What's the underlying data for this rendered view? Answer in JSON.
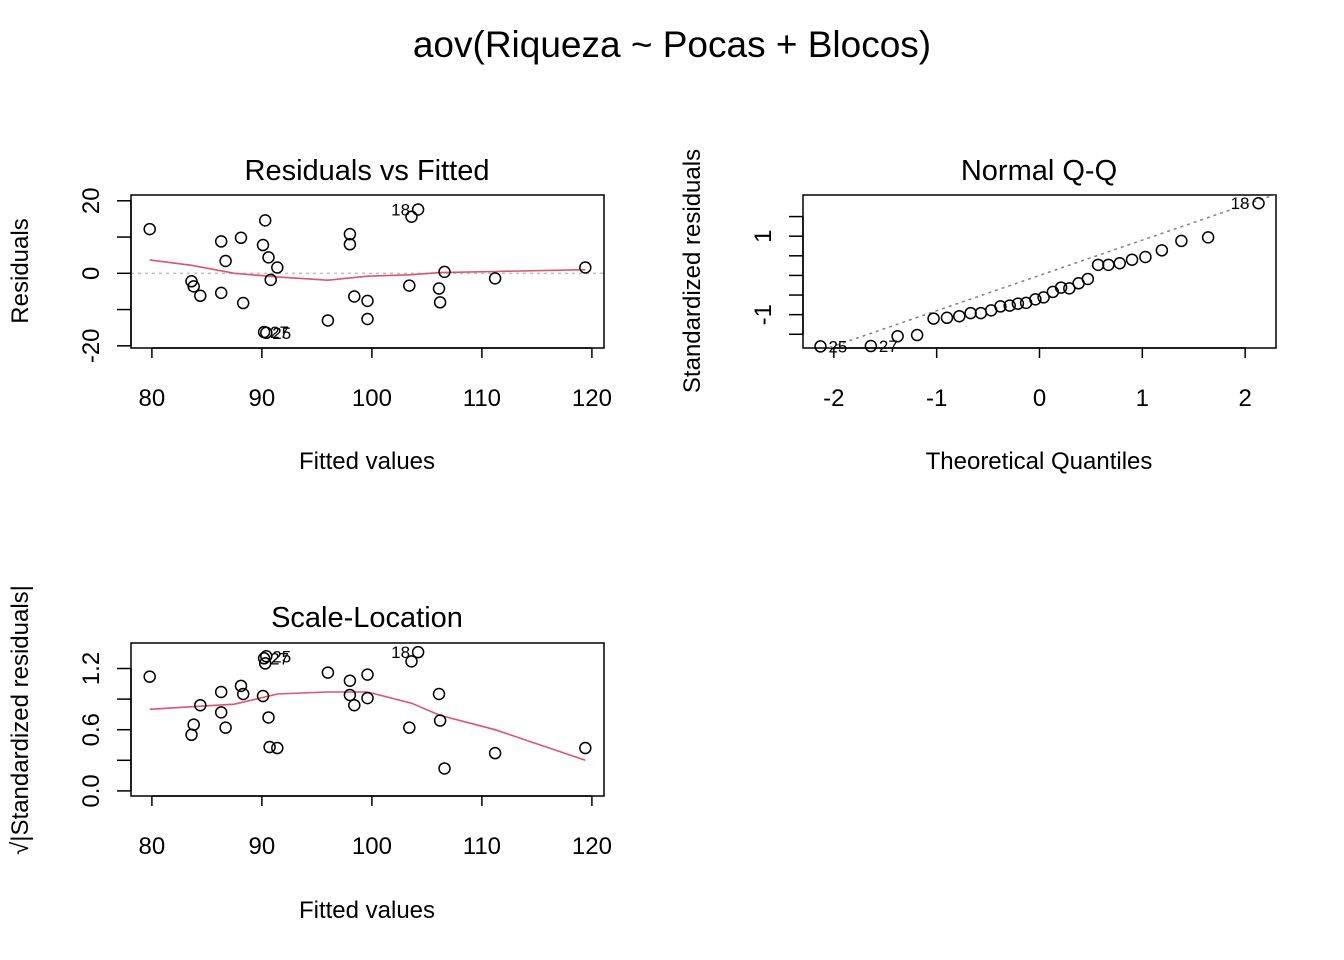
{
  "figure": {
    "title": "aov(Riqueza ~ Pocas + Blocos)"
  },
  "colors": {
    "smooth_line": "#df536b",
    "reference_line": "#bebebe",
    "qq_line": "#808080",
    "points": "#000000"
  },
  "chart_data": [
    {
      "type": "scatter",
      "title": "Residuals vs Fitted",
      "xlabel": "Fitted values",
      "ylabel": "Residuals",
      "xlim": [
        78.1,
        121.1
      ],
      "ylim": [
        -20.6,
        21.6
      ],
      "xticks": [
        80,
        90,
        100,
        110,
        120
      ],
      "yticks": [
        -20,
        -10,
        0,
        10,
        20
      ],
      "ytick_labels": [
        "-20",
        "",
        "0",
        "",
        "20"
      ],
      "grid": false,
      "reference_line_y": 0,
      "points": [
        {
          "x": 79.8,
          "y": 12.2
        },
        {
          "x": 83.6,
          "y": -2.2
        },
        {
          "x": 83.8,
          "y": -3.6
        },
        {
          "x": 84.4,
          "y": -6.2
        },
        {
          "x": 86.3,
          "y": 8.8
        },
        {
          "x": 86.3,
          "y": -5.4
        },
        {
          "x": 86.7,
          "y": 3.4
        },
        {
          "x": 88.1,
          "y": 9.8
        },
        {
          "x": 88.3,
          "y": -8.2
        },
        {
          "x": 90.1,
          "y": 7.8
        },
        {
          "x": 90.3,
          "y": 14.6
        },
        {
          "x": 90.2,
          "y": -16.2
        },
        {
          "x": 90.4,
          "y": -16.4
        },
        {
          "x": 90.6,
          "y": 4.4
        },
        {
          "x": 90.8,
          "y": -1.8
        },
        {
          "x": 91.4,
          "y": 1.6
        },
        {
          "x": 96.0,
          "y": -13.0
        },
        {
          "x": 98.0,
          "y": 10.8
        },
        {
          "x": 98.0,
          "y": 8.0
        },
        {
          "x": 98.4,
          "y": -6.4
        },
        {
          "x": 99.6,
          "y": -7.6
        },
        {
          "x": 99.6,
          "y": -12.6
        },
        {
          "x": 103.4,
          "y": -3.4
        },
        {
          "x": 103.6,
          "y": 15.6
        },
        {
          "x": 104.2,
          "y": 17.6
        },
        {
          "x": 106.1,
          "y": -4.2
        },
        {
          "x": 106.2,
          "y": -8.0
        },
        {
          "x": 106.6,
          "y": 0.4
        },
        {
          "x": 111.2,
          "y": -1.4
        },
        {
          "x": 119.4,
          "y": 1.6
        }
      ],
      "point_labels": [
        {
          "text": "18",
          "x": 104.2,
          "y": 17.6
        },
        {
          "text": "27",
          "x": 90.2,
          "y": -16.2
        },
        {
          "text": "25",
          "x": 90.4,
          "y": -16.4
        }
      ],
      "smooth": [
        {
          "x": 79.8,
          "y": 3.7
        },
        {
          "x": 83.6,
          "y": 2.2
        },
        {
          "x": 87.5,
          "y": 0.0
        },
        {
          "x": 91.4,
          "y": -1.0
        },
        {
          "x": 96.0,
          "y": -1.9
        },
        {
          "x": 99.6,
          "y": -0.8
        },
        {
          "x": 103.4,
          "y": -0.4
        },
        {
          "x": 106.2,
          "y": 0.2
        },
        {
          "x": 111.2,
          "y": 0.5
        },
        {
          "x": 119.4,
          "y": 1.0
        }
      ]
    },
    {
      "type": "scatter",
      "title": "Normal Q-Q",
      "xlabel": "Theoretical Quantiles",
      "ylabel": "Standardized residuals",
      "xlim": [
        -2.3,
        2.3
      ],
      "ylim": [
        -1.85,
        2.05
      ],
      "xticks": [
        -2,
        -1,
        0,
        1,
        2
      ],
      "yticks": [
        -1.5,
        -1,
        -0.5,
        0,
        0.5,
        1,
        1.5
      ],
      "ytick_labels": [
        "",
        "-1",
        "",
        "",
        "",
        "1",
        ""
      ],
      "grid": false,
      "reference_line": {
        "intercept": 0.0,
        "slope": 0.9
      },
      "points": [
        {
          "x": -2.13,
          "y": -1.81
        },
        {
          "x": -1.64,
          "y": -1.8
        },
        {
          "x": -1.38,
          "y": -1.55
        },
        {
          "x": -1.19,
          "y": -1.52
        },
        {
          "x": -1.03,
          "y": -1.1
        },
        {
          "x": -0.9,
          "y": -1.08
        },
        {
          "x": -0.78,
          "y": -1.04
        },
        {
          "x": -0.67,
          "y": -0.96
        },
        {
          "x": -0.57,
          "y": -0.96
        },
        {
          "x": -0.47,
          "y": -0.89
        },
        {
          "x": -0.38,
          "y": -0.79
        },
        {
          "x": -0.29,
          "y": -0.77
        },
        {
          "x": -0.21,
          "y": -0.72
        },
        {
          "x": -0.13,
          "y": -0.7
        },
        {
          "x": -0.04,
          "y": -0.61
        },
        {
          "x": 0.04,
          "y": -0.56
        },
        {
          "x": 0.13,
          "y": -0.42
        },
        {
          "x": 0.21,
          "y": -0.31
        },
        {
          "x": 0.29,
          "y": -0.33
        },
        {
          "x": 0.38,
          "y": -0.2
        },
        {
          "x": 0.47,
          "y": -0.09
        },
        {
          "x": 0.57,
          "y": 0.27
        },
        {
          "x": 0.67,
          "y": 0.27
        },
        {
          "x": 0.78,
          "y": 0.31
        },
        {
          "x": 0.9,
          "y": 0.4
        },
        {
          "x": 1.03,
          "y": 0.47
        },
        {
          "x": 1.19,
          "y": 0.64
        },
        {
          "x": 1.38,
          "y": 0.88
        },
        {
          "x": 1.64,
          "y": 0.97
        },
        {
          "x": 2.13,
          "y": 1.84
        }
      ],
      "point_labels": [
        {
          "text": "25",
          "x": -2.13,
          "y": -1.81
        },
        {
          "text": "27",
          "x": -1.64,
          "y": -1.8
        },
        {
          "text": "18",
          "x": 2.13,
          "y": 1.84
        }
      ]
    },
    {
      "type": "scatter",
      "title": "Scale-Location",
      "xlabel": "Fitted values",
      "ylabel": "√|Standardized residuals|",
      "xlim": [
        78.1,
        121.1
      ],
      "ylim": [
        -0.05,
        1.45
      ],
      "xticks": [
        80,
        90,
        100,
        110,
        120
      ],
      "yticks": [
        0.0,
        0.3,
        0.6,
        0.9,
        1.2
      ],
      "ytick_labels": [
        "0.0",
        "",
        "0.6",
        "",
        "1.2"
      ],
      "grid": false,
      "points": [
        {
          "x": 79.8,
          "y": 1.12
        },
        {
          "x": 83.6,
          "y": 0.55
        },
        {
          "x": 83.8,
          "y": 0.65
        },
        {
          "x": 84.4,
          "y": 0.84
        },
        {
          "x": 86.3,
          "y": 0.97
        },
        {
          "x": 86.3,
          "y": 0.77
        },
        {
          "x": 86.7,
          "y": 0.62
        },
        {
          "x": 88.1,
          "y": 1.03
        },
        {
          "x": 88.3,
          "y": 0.95
        },
        {
          "x": 90.1,
          "y": 0.93
        },
        {
          "x": 90.2,
          "y": 1.3
        },
        {
          "x": 90.3,
          "y": 1.25
        },
        {
          "x": 90.4,
          "y": 1.32
        },
        {
          "x": 90.6,
          "y": 0.72
        },
        {
          "x": 90.7,
          "y": 0.43
        },
        {
          "x": 91.4,
          "y": 0.42
        },
        {
          "x": 96.0,
          "y": 1.16
        },
        {
          "x": 98.0,
          "y": 1.08
        },
        {
          "x": 98.0,
          "y": 0.94
        },
        {
          "x": 98.4,
          "y": 0.84
        },
        {
          "x": 99.6,
          "y": 1.14
        },
        {
          "x": 99.6,
          "y": 0.91
        },
        {
          "x": 103.4,
          "y": 0.62
        },
        {
          "x": 103.6,
          "y": 1.27
        },
        {
          "x": 104.2,
          "y": 1.36
        },
        {
          "x": 106.1,
          "y": 0.95
        },
        {
          "x": 106.2,
          "y": 0.69
        },
        {
          "x": 106.6,
          "y": 0.22
        },
        {
          "x": 111.2,
          "y": 0.37
        },
        {
          "x": 119.4,
          "y": 0.42
        }
      ],
      "point_labels": [
        {
          "text": "18",
          "x": 104.2,
          "y": 1.36
        },
        {
          "text": "27",
          "x": 90.2,
          "y": 1.3
        },
        {
          "text": "25",
          "x": 90.4,
          "y": 1.32
        }
      ],
      "smooth": [
        {
          "x": 79.8,
          "y": 0.8
        },
        {
          "x": 84.4,
          "y": 0.83
        },
        {
          "x": 87.5,
          "y": 0.85
        },
        {
          "x": 91.4,
          "y": 0.95
        },
        {
          "x": 96.0,
          "y": 0.97
        },
        {
          "x": 99.6,
          "y": 0.97
        },
        {
          "x": 103.6,
          "y": 0.86
        },
        {
          "x": 106.2,
          "y": 0.74
        },
        {
          "x": 111.2,
          "y": 0.6
        },
        {
          "x": 119.4,
          "y": 0.3
        }
      ]
    }
  ]
}
